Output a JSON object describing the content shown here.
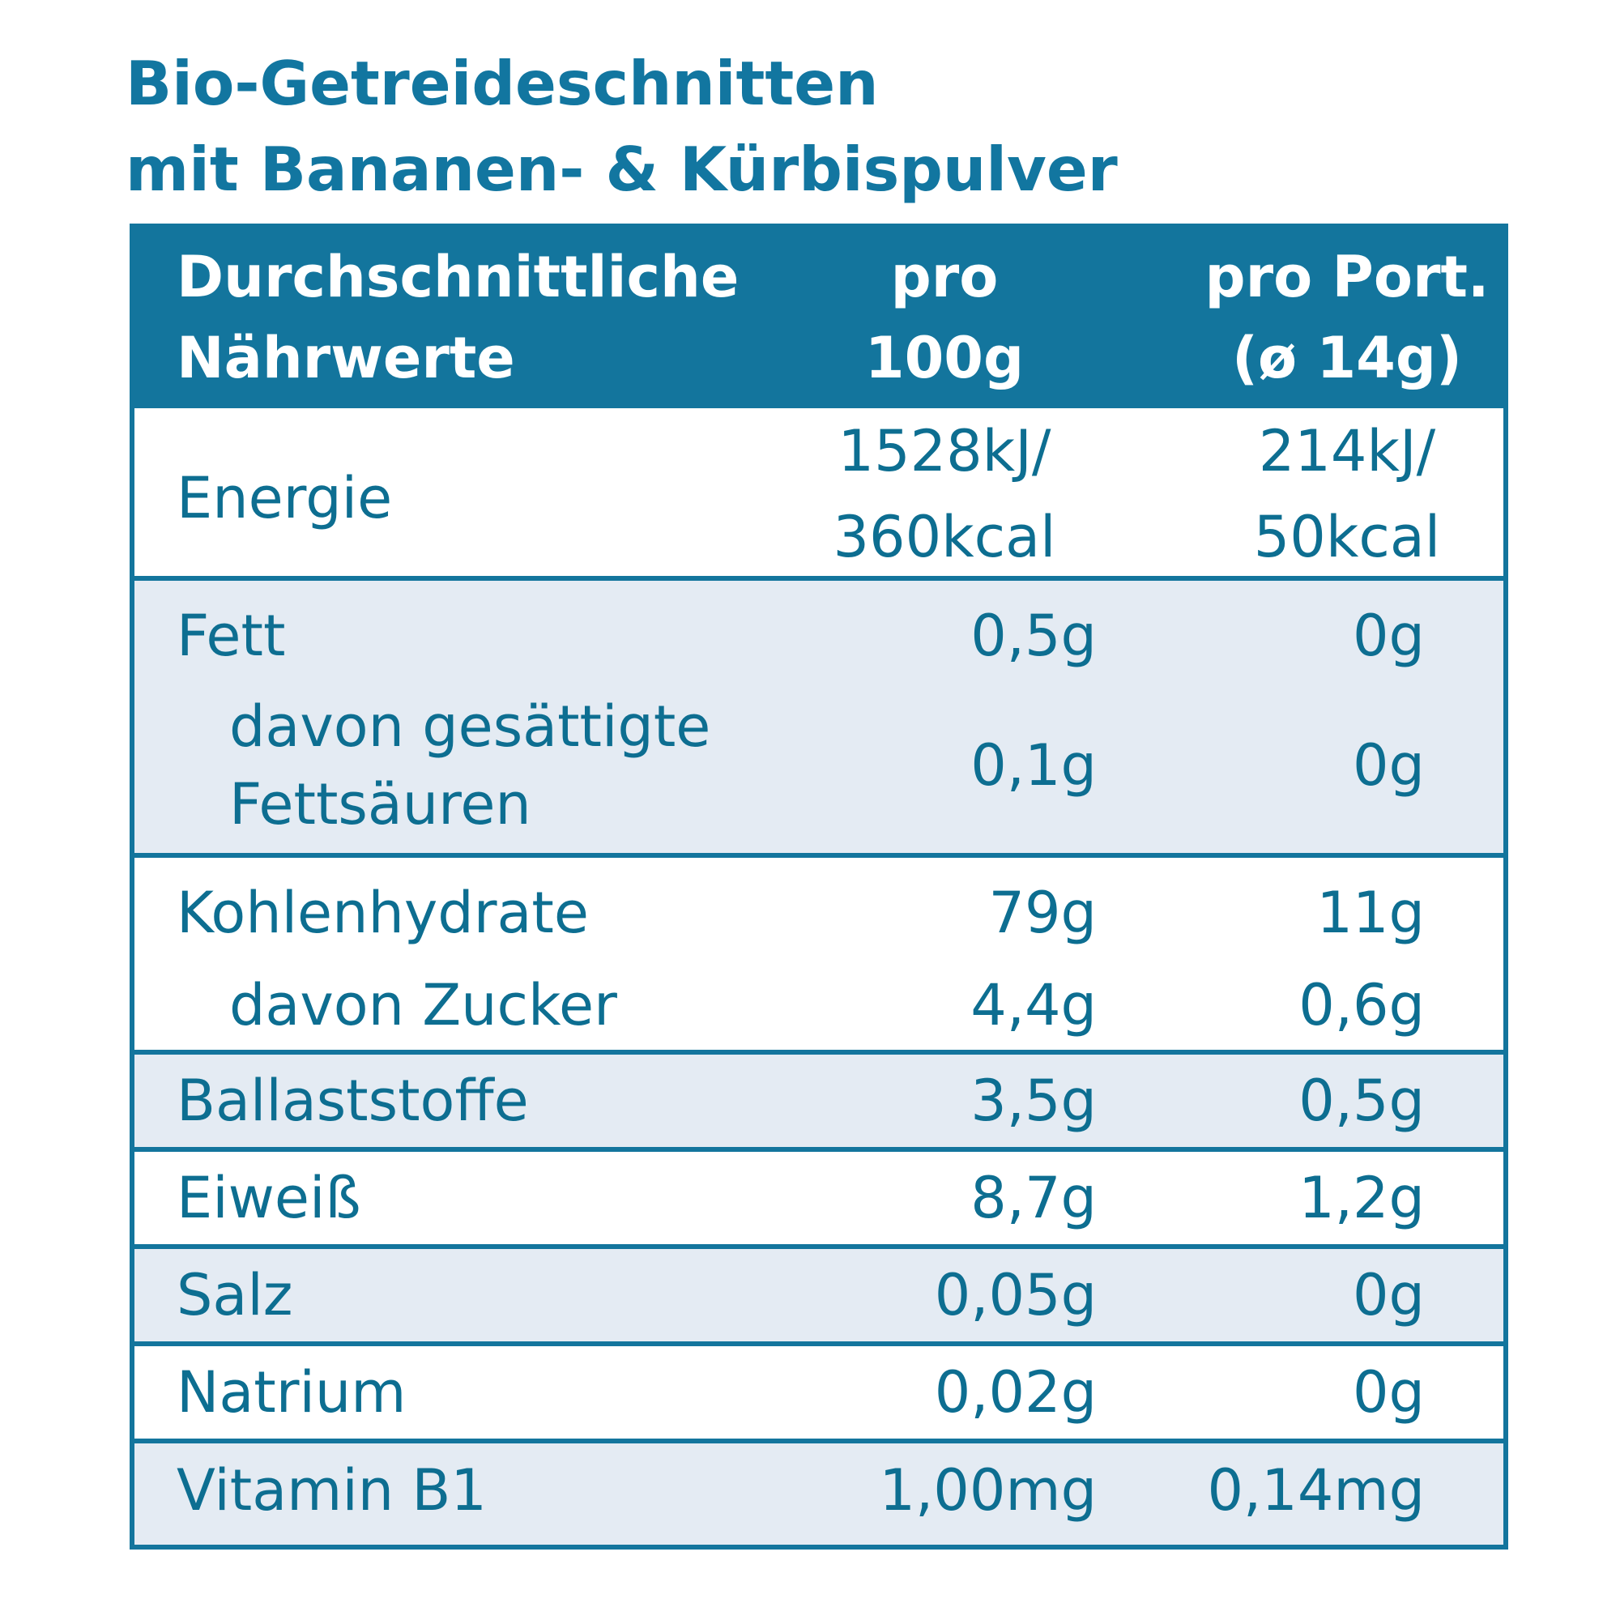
{
  "title": {
    "line1": "Bio-Getreideschnitten",
    "line2": "mit Bananen- & Kürbispulver"
  },
  "header": {
    "col1_line1": "Durchschnittliche",
    "col1_line2": "Nährwerte",
    "col2_line1": "pro",
    "col2_line2": "100g",
    "col3_line1": "pro Port.",
    "col3_line2": "(ø 14g)"
  },
  "rows": {
    "energie": {
      "label": "Energie",
      "v100_line1": "1528kJ/",
      "v100_line2": "360kcal",
      "vport_line1": "214kJ/",
      "vport_line2": "50kcal"
    },
    "fett": {
      "label": "Fett",
      "v100": "0,5g",
      "vport": "0g"
    },
    "fettsaeuren": {
      "label_line1": "davon gesättigte",
      "label_line2": "Fettsäuren",
      "v100": "0,1g",
      "vport": "0g"
    },
    "kohlenhydrate": {
      "label": "Kohlenhydrate",
      "v100": "79g",
      "vport": "11g"
    },
    "zucker": {
      "label": "davon Zucker",
      "v100": "4,4g",
      "vport": "0,6g"
    },
    "ballaststoffe": {
      "label": "Ballaststoffe",
      "v100": "3,5g",
      "vport": "0,5g"
    },
    "eiweiss": {
      "label": "Eiweiß",
      "v100": "8,7g",
      "vport": "1,2g"
    },
    "salz": {
      "label": "Salz",
      "v100": "0,05g",
      "vport": "0g"
    },
    "natrium": {
      "label": "Natrium",
      "v100": "0,02g",
      "vport": "0g"
    },
    "vitamin_b1": {
      "label": "Vitamin B1",
      "v100": "1,00mg",
      "vport": "0,14mg"
    }
  },
  "colors": {
    "brand_blue": "#13759d",
    "text_blue": "#0d6e91",
    "light_row": "#e4ebf3",
    "white_row": "#ffffff"
  }
}
